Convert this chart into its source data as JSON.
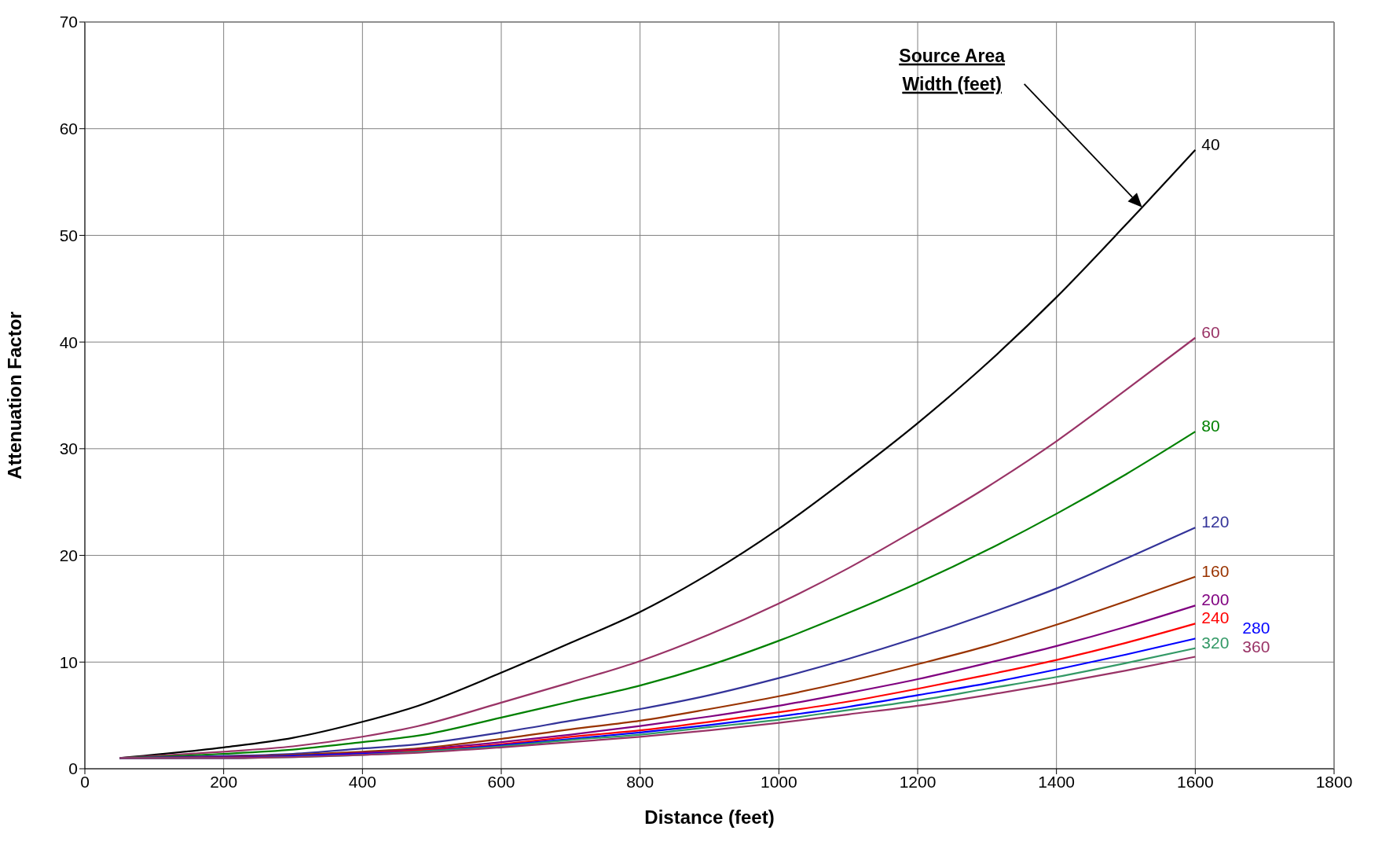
{
  "chart_data": {
    "type": "line",
    "xlabel": "Distance (feet)",
    "ylabel": "Attenuation Factor",
    "x": [
      50,
      200,
      300,
      400,
      480,
      600,
      700,
      800,
      900,
      1000,
      1100,
      1200,
      1300,
      1400,
      1500,
      1600
    ],
    "xlim": [
      0,
      1800
    ],
    "xticks": [
      0,
      200,
      400,
      600,
      800,
      1000,
      1200,
      1400,
      1600,
      1800
    ],
    "ylim": [
      0,
      70
    ],
    "yticks": [
      0,
      10,
      20,
      30,
      40,
      50,
      60,
      70
    ],
    "grid": true,
    "legend": false,
    "marker": "none",
    "line_style": "solid",
    "annotations": [
      "Source Area Width (feet)"
    ],
    "series": [
      {
        "name": "40",
        "color": "#000000",
        "values": [
          1,
          2.0,
          2.9,
          4.4,
          5.9,
          9.0,
          11.8,
          14.7,
          18.3,
          22.5,
          27.3,
          32.4,
          38,
          44.2,
          51,
          58
        ]
      },
      {
        "name": "60",
        "color": "#993366",
        "values": [
          1,
          1.6,
          2.1,
          3.0,
          4.0,
          6.2,
          8.1,
          10.1,
          12.6,
          15.5,
          18.8,
          22.5,
          26.4,
          30.7,
          35.5,
          40.4
        ]
      },
      {
        "name": "80",
        "color": "#008000",
        "values": [
          1,
          1.4,
          1.8,
          2.5,
          3.1,
          4.8,
          6.3,
          7.8,
          9.7,
          12.0,
          14.6,
          17.4,
          20.5,
          23.9,
          27.6,
          31.6
        ]
      },
      {
        "name": "120",
        "color": "#333399",
        "values": [
          1,
          1.2,
          1.4,
          1.9,
          2.3,
          3.4,
          4.5,
          5.6,
          6.9,
          8.5,
          10.3,
          12.3,
          14.5,
          16.9,
          19.7,
          22.6
        ]
      },
      {
        "name": "160",
        "color": "#993300",
        "values": [
          1,
          1.1,
          1.3,
          1.6,
          1.9,
          2.8,
          3.7,
          4.5,
          5.6,
          6.8,
          8.2,
          9.8,
          11.5,
          13.5,
          15.7,
          18.0
        ]
      },
      {
        "name": "200",
        "color": "#800080",
        "values": [
          1,
          1.1,
          1.2,
          1.5,
          1.8,
          2.5,
          3.2,
          4.0,
          4.9,
          5.9,
          7.1,
          8.4,
          9.9,
          11.5,
          13.3,
          15.3
        ]
      },
      {
        "name": "240",
        "color": "#ff0000",
        "values": [
          null,
          null,
          null,
          1.4,
          1.7,
          2.3,
          3.0,
          3.6,
          4.4,
          5.3,
          6.3,
          7.5,
          8.8,
          10.2,
          11.8,
          13.6
        ]
      },
      {
        "name": "280",
        "color": "#0000ff",
        "values": [
          1,
          1.0,
          1.2,
          1.4,
          1.6,
          2.2,
          2.8,
          3.4,
          4.1,
          4.9,
          5.8,
          6.9,
          8.0,
          9.3,
          10.7,
          12.2
        ]
      },
      {
        "name": "320",
        "color": "#339966",
        "values": [
          1,
          1.0,
          1.1,
          1.3,
          1.6,
          2.1,
          2.7,
          3.2,
          3.9,
          4.6,
          5.5,
          6.4,
          7.5,
          8.6,
          9.9,
          11.3
        ]
      },
      {
        "name": "360",
        "color": "#993366",
        "values": [
          1,
          1.0,
          1.1,
          1.3,
          1.5,
          2.0,
          2.5,
          3.0,
          3.6,
          4.3,
          5.1,
          5.9,
          6.9,
          8.0,
          9.2,
          10.5
        ]
      }
    ]
  }
}
